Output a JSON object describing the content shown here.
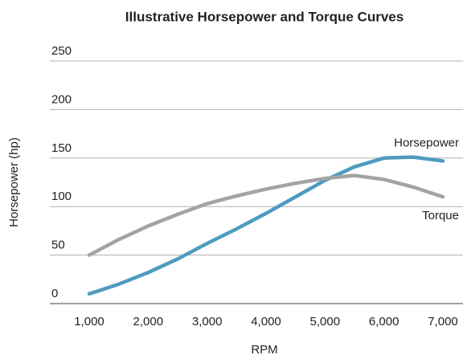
{
  "chart_data": {
    "type": "line",
    "title": "Illustrative Horsepower and Torque Curves",
    "x_label": "RPM",
    "y_label": "Horsepower (hp)",
    "x": [
      1000,
      1500,
      2000,
      2500,
      3000,
      3500,
      4000,
      4500,
      5000,
      5500,
      6000,
      6500,
      7000
    ],
    "series": [
      {
        "name": "Horsepower",
        "color": "#4f9bc0",
        "values": [
          10,
          20,
          32,
          46,
          62,
          77,
          93,
          110,
          127,
          141,
          150,
          151,
          147
        ]
      },
      {
        "name": "Torque",
        "color": "#a3a3a3",
        "values": [
          50,
          66,
          80,
          92,
          103,
          111,
          118,
          124,
          129,
          132,
          128,
          120,
          110
        ]
      }
    ],
    "xlim": [
      1000,
      7000
    ],
    "xticks": [
      {
        "value": 1000,
        "label": "1,000"
      },
      {
        "value": 2000,
        "label": "2,000"
      },
      {
        "value": 3000,
        "label": "3,000"
      },
      {
        "value": 4000,
        "label": "4,000"
      },
      {
        "value": 5000,
        "label": "5,000"
      },
      {
        "value": 6000,
        "label": "6,000"
      },
      {
        "value": 7000,
        "label": "7,000"
      }
    ],
    "ylim": [
      0,
      250
    ],
    "yticks": [
      0,
      50,
      100,
      150,
      200,
      250
    ],
    "grid": true
  }
}
